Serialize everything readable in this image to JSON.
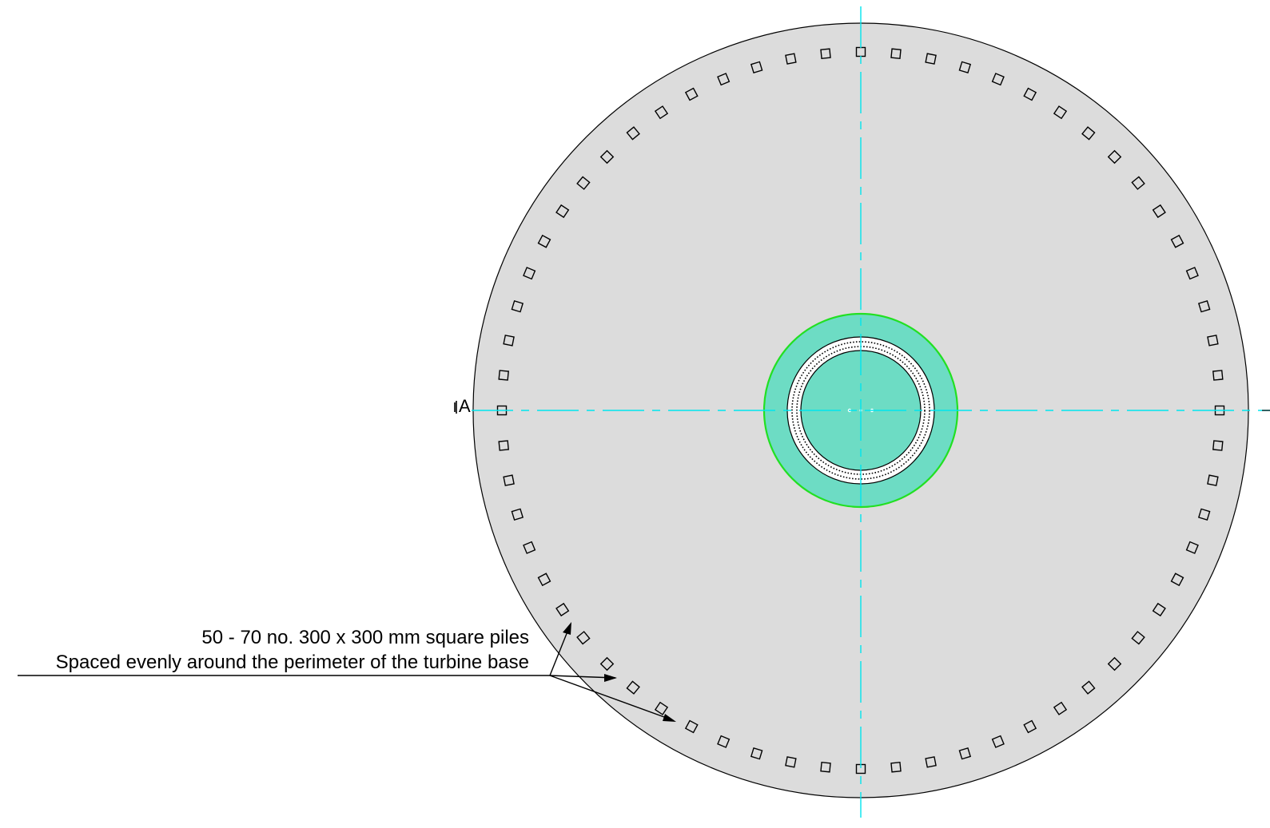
{
  "drawing": {
    "section_label": "A",
    "note": {
      "line1": "50 - 70 no. 300 x 300 mm square piles",
      "line2": "Spaced evenly around the perimeter of the turbine base"
    },
    "pile_count_drawn": 64,
    "colors": {
      "base_fill": "#dcdcdc",
      "base_outline": "#000000",
      "pedestal_fill": "#6ddcc4",
      "pedestal_outline": "#22e022",
      "centreline": "#00e5ee",
      "pile_outline": "#000000"
    }
  }
}
